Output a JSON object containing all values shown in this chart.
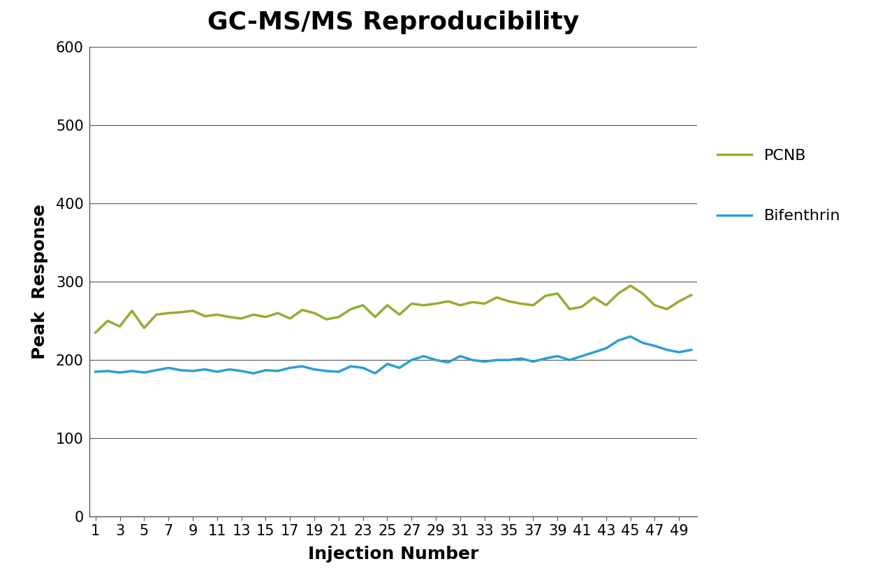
{
  "title": "GC-MS/MS Reproducibility",
  "xlabel": "Injection Number",
  "ylabel": "Peak  Response",
  "ylim": [
    0,
    600
  ],
  "yticks": [
    0,
    100,
    200,
    300,
    400,
    500,
    600
  ],
  "xtick_labels": [
    "1",
    "3",
    "5",
    "7",
    "9",
    "11",
    "13",
    "15",
    "17",
    "19",
    "21",
    "23",
    "25",
    "27",
    "29",
    "31",
    "33",
    "35",
    "37",
    "39",
    "41",
    "43",
    "45",
    "47",
    "49"
  ],
  "pcnb_color": "#8db030",
  "bifenthrin_color": "#2b9fd4",
  "line_width": 2.5,
  "pcnb_label": "PCNB",
  "bifenthrin_label": "Bifenthrin",
  "background_color": "#ffffff",
  "title_fontsize": 26,
  "axis_label_fontsize": 18,
  "tick_fontsize": 15,
  "legend_fontsize": 16,
  "grid_color": "#555555",
  "grid_linewidth": 0.8,
  "pcnb_data": [
    235,
    250,
    243,
    263,
    241,
    258,
    260,
    261,
    263,
    256,
    258,
    255,
    253,
    258,
    255,
    260,
    253,
    264,
    260,
    252,
    255,
    265,
    270,
    255,
    270,
    258,
    272,
    270,
    272,
    275,
    270,
    274,
    272,
    280,
    275,
    272,
    270,
    282,
    285,
    265,
    268,
    280,
    270,
    285,
    295,
    285,
    270,
    265,
    275,
    283
  ],
  "bifenthrin_data": [
    185,
    186,
    184,
    186,
    184,
    187,
    190,
    187,
    186,
    188,
    185,
    188,
    186,
    183,
    187,
    186,
    190,
    192,
    188,
    186,
    185,
    192,
    190,
    183,
    195,
    190,
    200,
    205,
    200,
    197,
    205,
    200,
    198,
    200,
    200,
    202,
    198,
    202,
    205,
    200,
    205,
    210,
    215,
    225,
    230,
    222,
    218,
    213,
    210,
    213
  ]
}
